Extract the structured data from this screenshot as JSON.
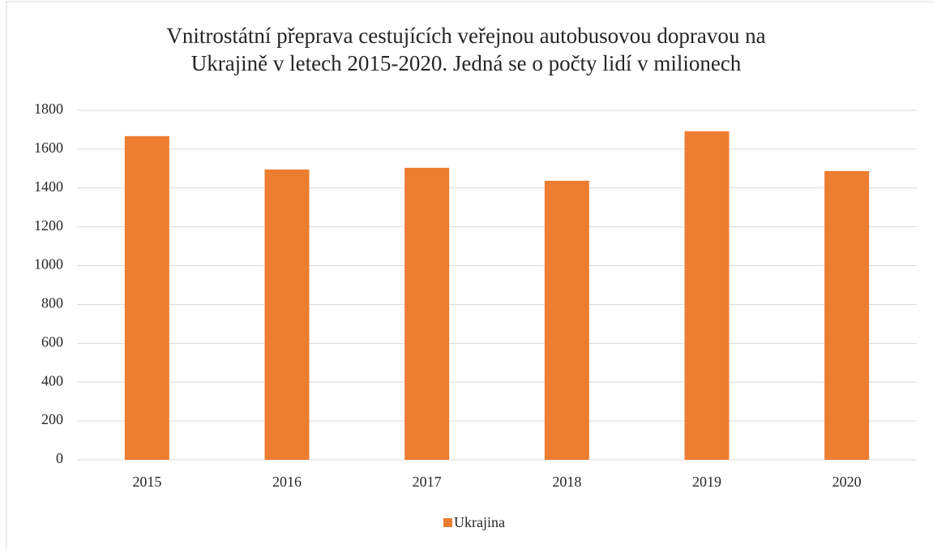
{
  "chart_data": {
    "type": "bar",
    "title": [
      "Vnitrostátní přeprava cestujících veřejnou autobusovou dopravou na",
      "Ukrajině v letech 2015-2020. Jedná se o počty lidí v milionech"
    ],
    "categories": [
      "2015",
      "2016",
      "2017",
      "2018",
      "2019",
      "2020"
    ],
    "series": [
      {
        "name": "Ukrajina",
        "color": "#ed7d31",
        "values": [
          1667,
          1495,
          1504,
          1437,
          1692,
          1487
        ]
      }
    ],
    "ylim": [
      0,
      1800
    ],
    "yticks": [
      0,
      200,
      400,
      600,
      800,
      1000,
      1200,
      1400,
      1600,
      1800
    ],
    "grid": true,
    "legend": "bottom"
  }
}
